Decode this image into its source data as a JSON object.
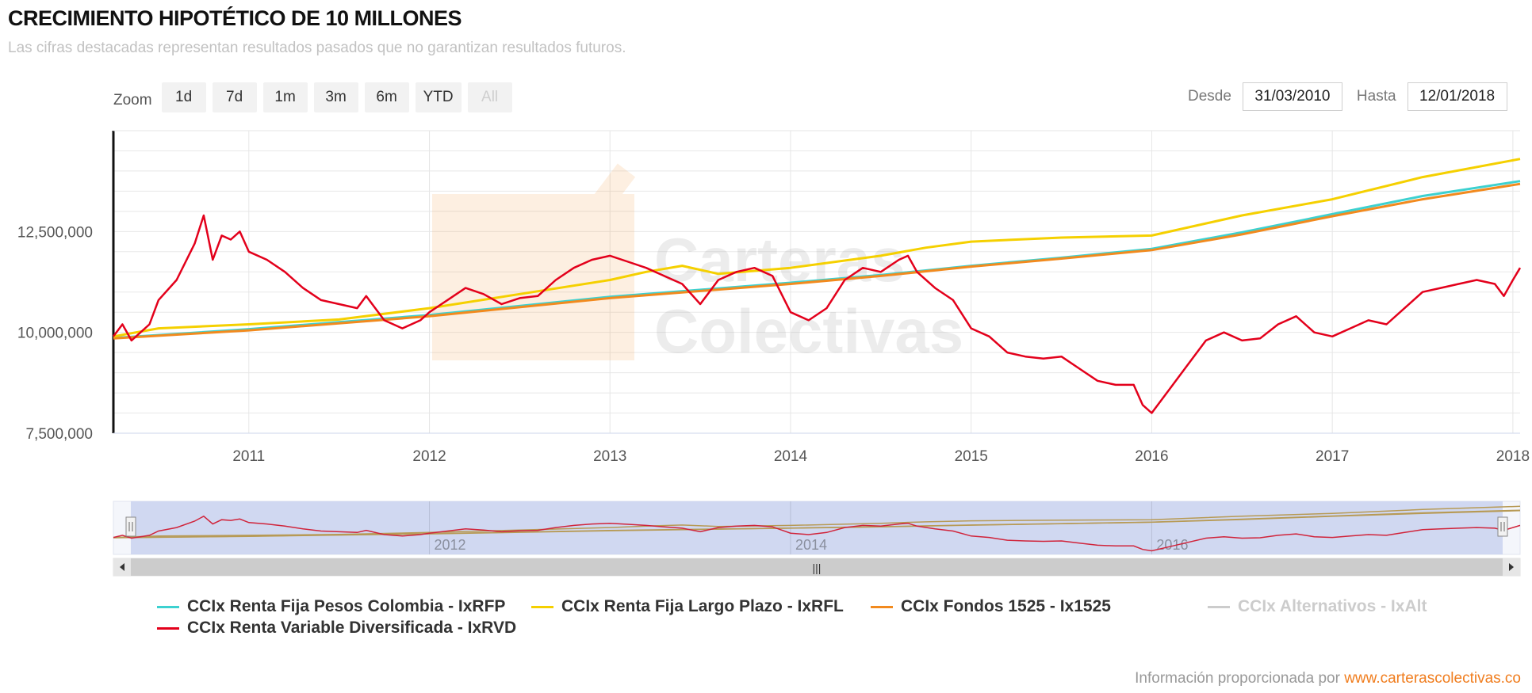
{
  "header": {
    "title": "CRECIMIENTO HIPOTÉTICO DE 10 MILLONES",
    "subtitle": "Las cifras destacadas representan resultados pasados que no garantizan resultados futuros."
  },
  "zoom": {
    "label": "Zoom",
    "buttons": [
      "1d",
      "7d",
      "1m",
      "3m",
      "6m",
      "YTD",
      "All"
    ],
    "disabled": "All"
  },
  "range": {
    "from_label": "Desde",
    "from_value": "31/03/2010",
    "to_label": "Hasta",
    "to_value": "12/01/2018"
  },
  "watermark": {
    "text_line1": "Carteras",
    "text_line2": "Colectivas"
  },
  "navigator": {
    "tick_labels": [
      "2012",
      "2014",
      "2016"
    ],
    "handle_glyph": "|||"
  },
  "credits": {
    "prefix": "Información proporcionada por",
    "link": "www.carterascolectivas.co"
  },
  "chart_data": {
    "type": "line",
    "title": "CRECIMIENTO HIPOTÉTICO DE 10 MILLONES",
    "xlim": [
      2010.25,
      2018.04
    ],
    "ylim": [
      7500000,
      15000000
    ],
    "yticks": [
      7500000,
      10000000,
      12500000
    ],
    "ytick_labels": [
      "7,500,000",
      "10,000,000",
      "12,500,000"
    ],
    "xticks": [
      2011,
      2012,
      2013,
      2014,
      2015,
      2016,
      2017,
      2018
    ],
    "xtick_labels": [
      "2011",
      "2012",
      "2013",
      "2014",
      "2015",
      "2016",
      "2017",
      "2018"
    ],
    "grid": true,
    "legend_position": "bottom",
    "series": [
      {
        "name": "CCIx Renta Fija Pesos Colombia - IxRFP",
        "color": "#3dd1d0",
        "visible": true,
        "x": [
          2010.25,
          2011.0,
          2012.0,
          2013.0,
          2014.0,
          2014.5,
          2015.0,
          2015.5,
          2016.0,
          2016.5,
          2017.0,
          2017.5,
          2018.04
        ],
        "y": [
          9860000,
          10080000,
          10430000,
          10880000,
          11230000,
          11420000,
          11650000,
          11850000,
          12070000,
          12480000,
          12930000,
          13380000,
          13750000
        ]
      },
      {
        "name": "CCIx Renta Fija Largo Plazo - IxRFL",
        "color": "#f5d000",
        "visible": true,
        "x": [
          2010.25,
          2010.5,
          2011.0,
          2011.5,
          2012.0,
          2012.5,
          2013.0,
          2013.2,
          2013.4,
          2013.6,
          2014.0,
          2014.5,
          2014.75,
          2015.0,
          2015.25,
          2015.5,
          2016.0,
          2016.5,
          2017.0,
          2017.5,
          2018.04
        ],
        "y": [
          9900000,
          10100000,
          10200000,
          10320000,
          10600000,
          10950000,
          11300000,
          11500000,
          11650000,
          11450000,
          11600000,
          11900000,
          12100000,
          12250000,
          12300000,
          12350000,
          12400000,
          12900000,
          13300000,
          13850000,
          14300000
        ]
      },
      {
        "name": "CCIx Fondos 1525 - Ix1525",
        "color": "#f28a1e",
        "visible": true,
        "x": [
          2010.25,
          2011.0,
          2012.0,
          2013.0,
          2014.0,
          2014.5,
          2015.0,
          2015.5,
          2016.0,
          2016.5,
          2017.0,
          2017.5,
          2018.04
        ],
        "y": [
          9850000,
          10050000,
          10400000,
          10850000,
          11200000,
          11400000,
          11630000,
          11830000,
          12040000,
          12430000,
          12880000,
          13300000,
          13680000
        ]
      },
      {
        "name": "CCIx Alternativos - IxAlt",
        "color": "#cccccc",
        "visible": false,
        "x": [],
        "y": []
      },
      {
        "name": "CCIx Renta Variable Diversificada - IxRVD",
        "color": "#e3001b",
        "visible": true,
        "x": [
          2010.25,
          2010.3,
          2010.35,
          2010.4,
          2010.45,
          2010.5,
          2010.6,
          2010.7,
          2010.75,
          2010.8,
          2010.85,
          2010.9,
          2010.95,
          2011.0,
          2011.1,
          2011.2,
          2011.3,
          2011.4,
          2011.5,
          2011.6,
          2011.65,
          2011.75,
          2011.85,
          2011.95,
          2012.0,
          2012.1,
          2012.2,
          2012.3,
          2012.4,
          2012.5,
          2012.6,
          2012.7,
          2012.8,
          2012.9,
          2013.0,
          2013.1,
          2013.2,
          2013.3,
          2013.4,
          2013.5,
          2013.6,
          2013.7,
          2013.8,
          2013.9,
          2014.0,
          2014.1,
          2014.2,
          2014.3,
          2014.4,
          2014.5,
          2014.6,
          2014.65,
          2014.7,
          2014.8,
          2014.9,
          2015.0,
          2015.1,
          2015.2,
          2015.3,
          2015.4,
          2015.5,
          2015.6,
          2015.7,
          2015.8,
          2015.9,
          2015.95,
          2016.0,
          2016.1,
          2016.2,
          2016.3,
          2016.4,
          2016.5,
          2016.6,
          2016.7,
          2016.8,
          2016.9,
          2017.0,
          2017.1,
          2017.2,
          2017.3,
          2017.4,
          2017.5,
          2017.6,
          2017.7,
          2017.8,
          2017.9,
          2017.95,
          2018.0,
          2018.04
        ],
        "y": [
          9900000,
          10200000,
          9800000,
          10000000,
          10200000,
          10800000,
          11300000,
          12200000,
          12900000,
          11800000,
          12400000,
          12300000,
          12500000,
          12000000,
          11800000,
          11500000,
          11100000,
          10800000,
          10700000,
          10600000,
          10900000,
          10300000,
          10100000,
          10300000,
          10500000,
          10800000,
          11100000,
          10950000,
          10700000,
          10850000,
          10900000,
          11300000,
          11600000,
          11800000,
          11900000,
          11750000,
          11600000,
          11400000,
          11200000,
          10700000,
          11300000,
          11500000,
          11600000,
          11400000,
          10500000,
          10300000,
          10600000,
          11300000,
          11600000,
          11500000,
          11800000,
          11900000,
          11500000,
          11100000,
          10800000,
          10100000,
          9900000,
          9500000,
          9400000,
          9350000,
          9400000,
          9100000,
          8800000,
          8700000,
          8700000,
          8200000,
          8000000,
          8600000,
          9200000,
          9800000,
          10000000,
          9800000,
          9850000,
          10200000,
          10400000,
          10000000,
          9900000,
          10100000,
          10300000,
          10200000,
          10600000,
          11000000,
          11100000,
          11200000,
          11300000,
          11200000,
          10900000,
          11300000,
          11600000
        ]
      }
    ]
  }
}
